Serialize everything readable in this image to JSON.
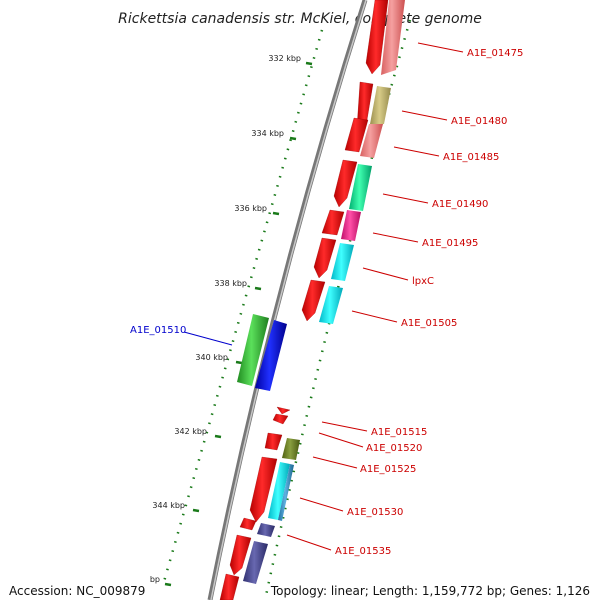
{
  "title": "Rickettsia canadensis str. McKiel, complete genome",
  "footer": {
    "accession": "Accession: NC_009879",
    "summary": "Topology: linear; Length: 1,159,772 bp; Genes: 1,126"
  },
  "ticks": [
    "332 kbp",
    "334 kbp",
    "336 kbp",
    "338 kbp",
    "340 kbp",
    "342 kbp",
    "344 kbp",
    "bp"
  ],
  "genes": [
    {
      "name": "A1E_01475",
      "color": "#cc0000"
    },
    {
      "name": "A1E_01480",
      "color": "#cc0000"
    },
    {
      "name": "A1E_01485",
      "color": "#cc0000"
    },
    {
      "name": "A1E_01490",
      "color": "#cc0000"
    },
    {
      "name": "A1E_01495",
      "color": "#cc0000"
    },
    {
      "name": "lpxC",
      "color": "#cc0000"
    },
    {
      "name": "A1E_01505",
      "color": "#cc0000"
    },
    {
      "name": "A1E_01510",
      "color": "#0000cc"
    },
    {
      "name": "A1E_01515",
      "color": "#cc0000"
    },
    {
      "name": "A1E_01520",
      "color": "#cc0000"
    },
    {
      "name": "A1E_01525",
      "color": "#cc0000"
    },
    {
      "name": "A1E_01530",
      "color": "#cc0000"
    },
    {
      "name": "A1E_01535",
      "color": "#cc0000"
    }
  ]
}
